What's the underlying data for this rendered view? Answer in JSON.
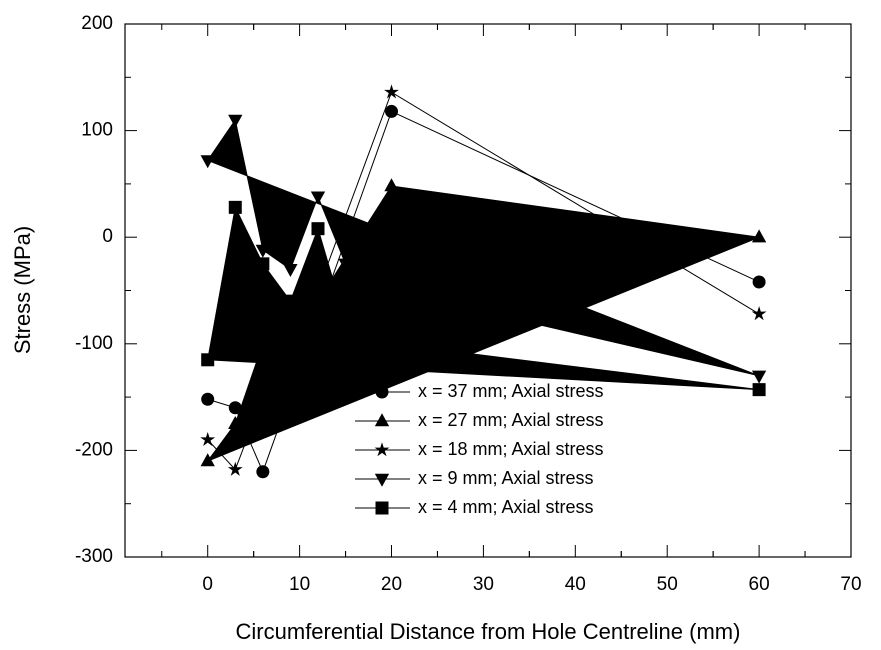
{
  "chart_data": {
    "type": "line",
    "x_label": "Circumferential Distance from Hole Centreline (mm)",
    "y_label": "Stress (MPa)",
    "xlim": [
      -9,
      70
    ],
    "xticks": [
      0,
      10,
      20,
      30,
      40,
      50,
      60,
      70
    ],
    "ylim": [
      -300,
      200
    ],
    "yticks": [
      -300,
      -200,
      -100,
      0,
      100,
      200
    ],
    "legend": "center",
    "series": [
      {
        "name": "x = 37 mm; Axial stress",
        "marker": "circle",
        "color": "#000000",
        "filled": false,
        "x": [
          0,
          3,
          6,
          20,
          60
        ],
        "values": [
          -152,
          -160,
          -220,
          118,
          -42
        ]
      },
      {
        "name": "x = 27 mm; Axial stress",
        "marker": "triangle-up",
        "color": "#000000",
        "filled": true,
        "x": [
          0,
          3,
          6,
          12,
          20,
          60
        ],
        "values": [
          -210,
          -175,
          -100,
          -60,
          48,
          0
        ]
      },
      {
        "name": "x = 18 mm; Axial stress",
        "marker": "star",
        "color": "#000000",
        "filled": false,
        "x": [
          0,
          3,
          6,
          12,
          20,
          60
        ],
        "values": [
          -190,
          -218,
          -150,
          -50,
          136,
          -72
        ]
      },
      {
        "name": "x = 9 mm; Axial stress",
        "marker": "triangle-down",
        "color": "#000000",
        "filled": true,
        "x": [
          0,
          3,
          6,
          9,
          12,
          15,
          20,
          60
        ],
        "values": [
          72,
          110,
          -12,
          -30,
          38,
          -25,
          -50,
          -130
        ]
      },
      {
        "name": "x = 4 mm; Axial stress",
        "marker": "square",
        "color": "#000000",
        "filled": true,
        "x": [
          0,
          3,
          6,
          9,
          12,
          15,
          20,
          60
        ],
        "values": [
          -115,
          28,
          -25,
          -60,
          8,
          -80,
          -100,
          -143
        ]
      }
    ]
  }
}
